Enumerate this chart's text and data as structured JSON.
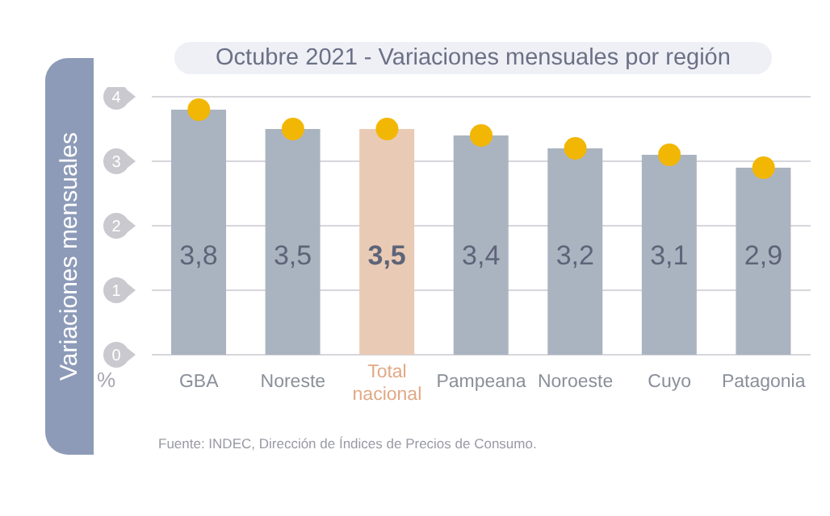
{
  "chart_data": {
    "type": "bar",
    "title": "Octubre 2021 - Variaciones mensuales por región",
    "ylabel": "Variaciones mensuales",
    "categories": [
      "GBA",
      "Noreste",
      "Total nacional",
      "Pampeana",
      "Noroeste",
      "Cuyo",
      "Patagonia"
    ],
    "series": [
      {
        "type": "bar",
        "color": "#aab4c0",
        "colors": [
          "#aab4c0",
          "#aab4c0",
          "#e9cab5",
          "#aab4c0",
          "#aab4c0",
          "#aab4c0",
          "#aab4c0"
        ],
        "values": [
          3.8,
          3.5,
          3.5,
          3.4,
          3.2,
          3.1,
          2.9
        ],
        "value_labels": [
          "3,8",
          "3,5",
          "3,5",
          "3,4",
          "3,2",
          "3,1",
          "2,9"
        ]
      },
      {
        "type": "scatter",
        "color": "#f2b705",
        "x": [
          "GBA",
          "Noreste",
          "Total nacional",
          "Pampeana",
          "Noroeste",
          "Cuyo",
          "Patagonia"
        ],
        "values": [
          3.8,
          3.5,
          3.5,
          3.4,
          3.2,
          3.1,
          2.9
        ]
      }
    ],
    "ylim": [
      0,
      4
    ],
    "yticks": [
      0,
      1,
      2,
      3,
      4
    ],
    "grid": "y",
    "marker": "circle",
    "legend": false,
    "annotations": [
      "%",
      "Fuente: INDEC, Dirección de Índices de Precios de Consumo."
    ]
  }
}
